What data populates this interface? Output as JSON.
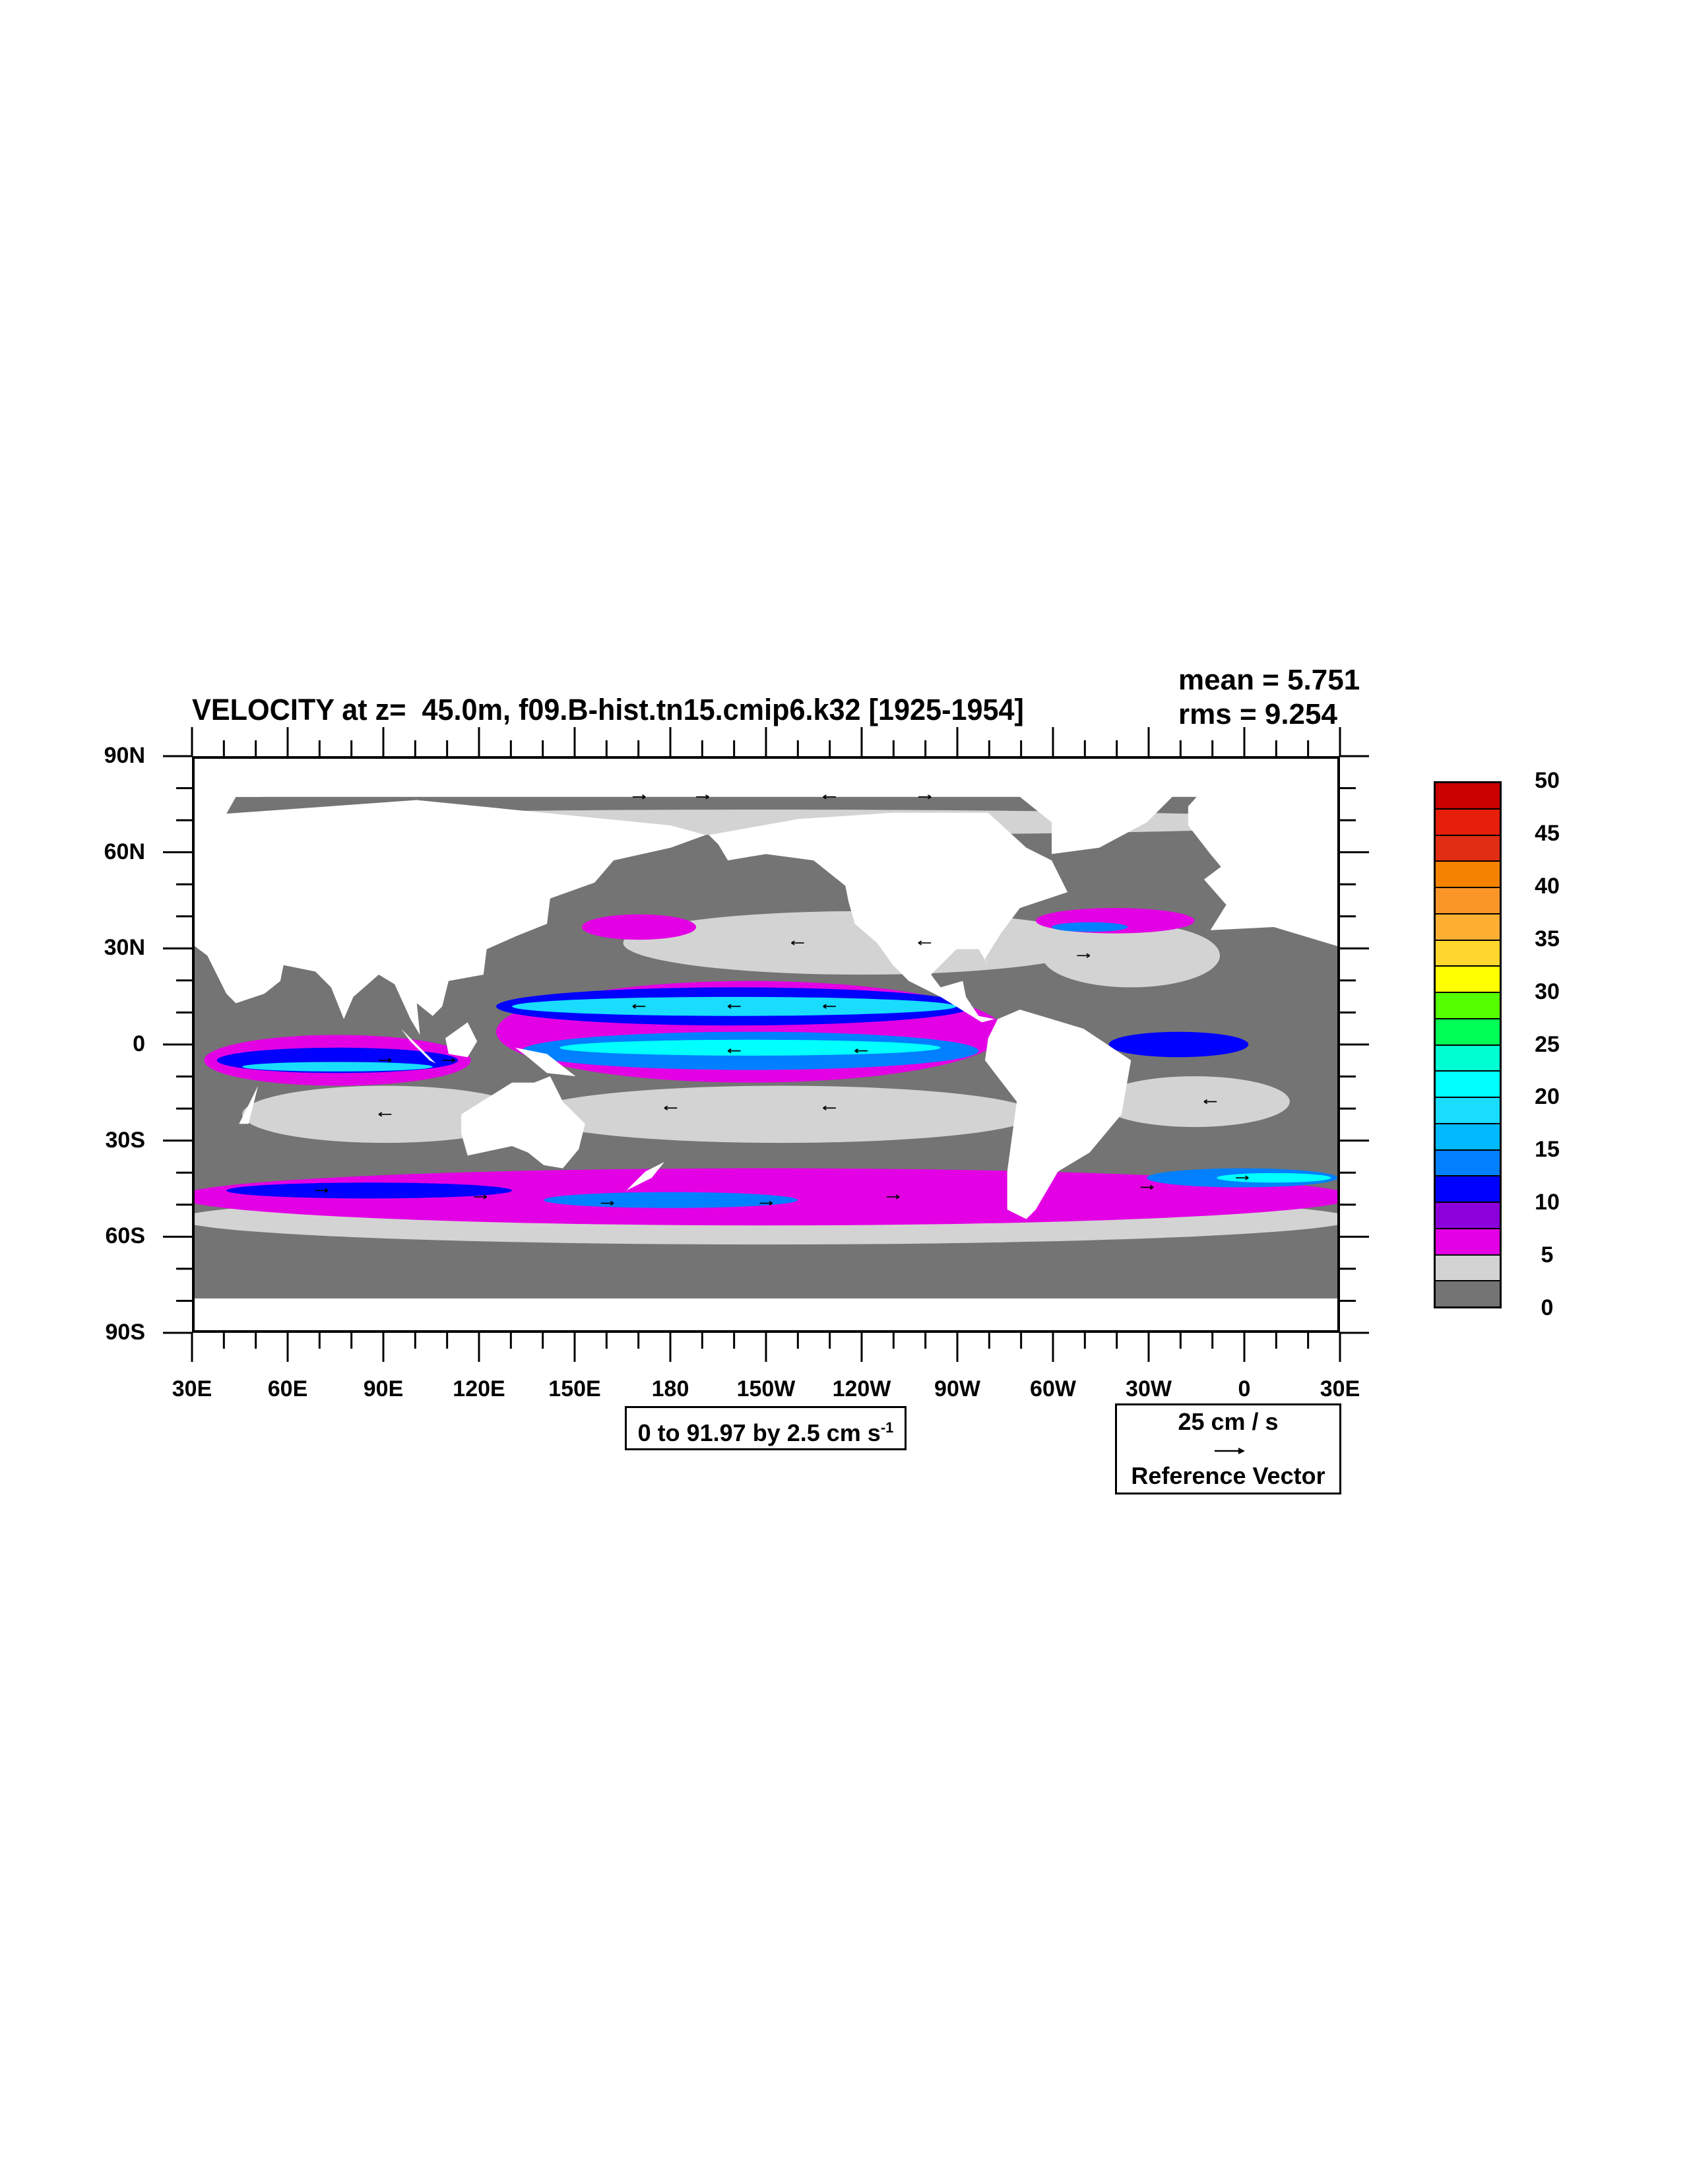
{
  "chart_data": {
    "type": "heatmap",
    "subtype": "filled-contour map with vector overlay",
    "title": "VELOCITY at z=  45.0m, f09.B-hist.tn15.cmip6.k32 [1925-1954]",
    "stats": {
      "mean": "mean = 5.751",
      "rms": "rms = 9.254"
    },
    "x_axis": {
      "range": [
        30,
        390
      ],
      "tick_labels": [
        "30E",
        "60E",
        "90E",
        "120E",
        "150E",
        "180",
        "150W",
        "120W",
        "90W",
        "60W",
        "30W",
        "0",
        "30E"
      ]
    },
    "y_axis": {
      "range": [
        -90,
        90
      ],
      "tick_labels": [
        "90N",
        "60N",
        "30N",
        "0",
        "30S",
        "60S",
        "90S"
      ]
    },
    "colorbar": {
      "levels": [
        0,
        2.5,
        5,
        7.5,
        10,
        12.5,
        15,
        17.5,
        20,
        22.5,
        25,
        27.5,
        30,
        32.5,
        35,
        37.5,
        40,
        42.5,
        45,
        47.5,
        50
      ],
      "labels": [
        "0",
        "5",
        "10",
        "15",
        "20",
        "25",
        "30",
        "35",
        "40",
        "45",
        "50"
      ],
      "colors": [
        "#747474",
        "#d3d3d3",
        "#e400e4",
        "#8c00dc",
        "#0000ff",
        "#0080ff",
        "#00b9ff",
        "#19dcff",
        "#00ffff",
        "#00ffd2",
        "#00ff55",
        "#55ff00",
        "#ffff00",
        "#ffd72d",
        "#ffaf32",
        "#fa9628",
        "#f58200",
        "#e12d14",
        "#e61e0a",
        "#c80000"
      ]
    },
    "contour_info": {
      "text": "0 to 91.97 by 2.5 cm s",
      "superscript": "-1"
    },
    "reference_vector": {
      "magnitude": "25 cm / s",
      "label": "Reference Vector"
    },
    "colors": {
      "ocean_low": "#747474",
      "ocean_mid": "#d3d3d3",
      "land": "#ffffff"
    }
  }
}
